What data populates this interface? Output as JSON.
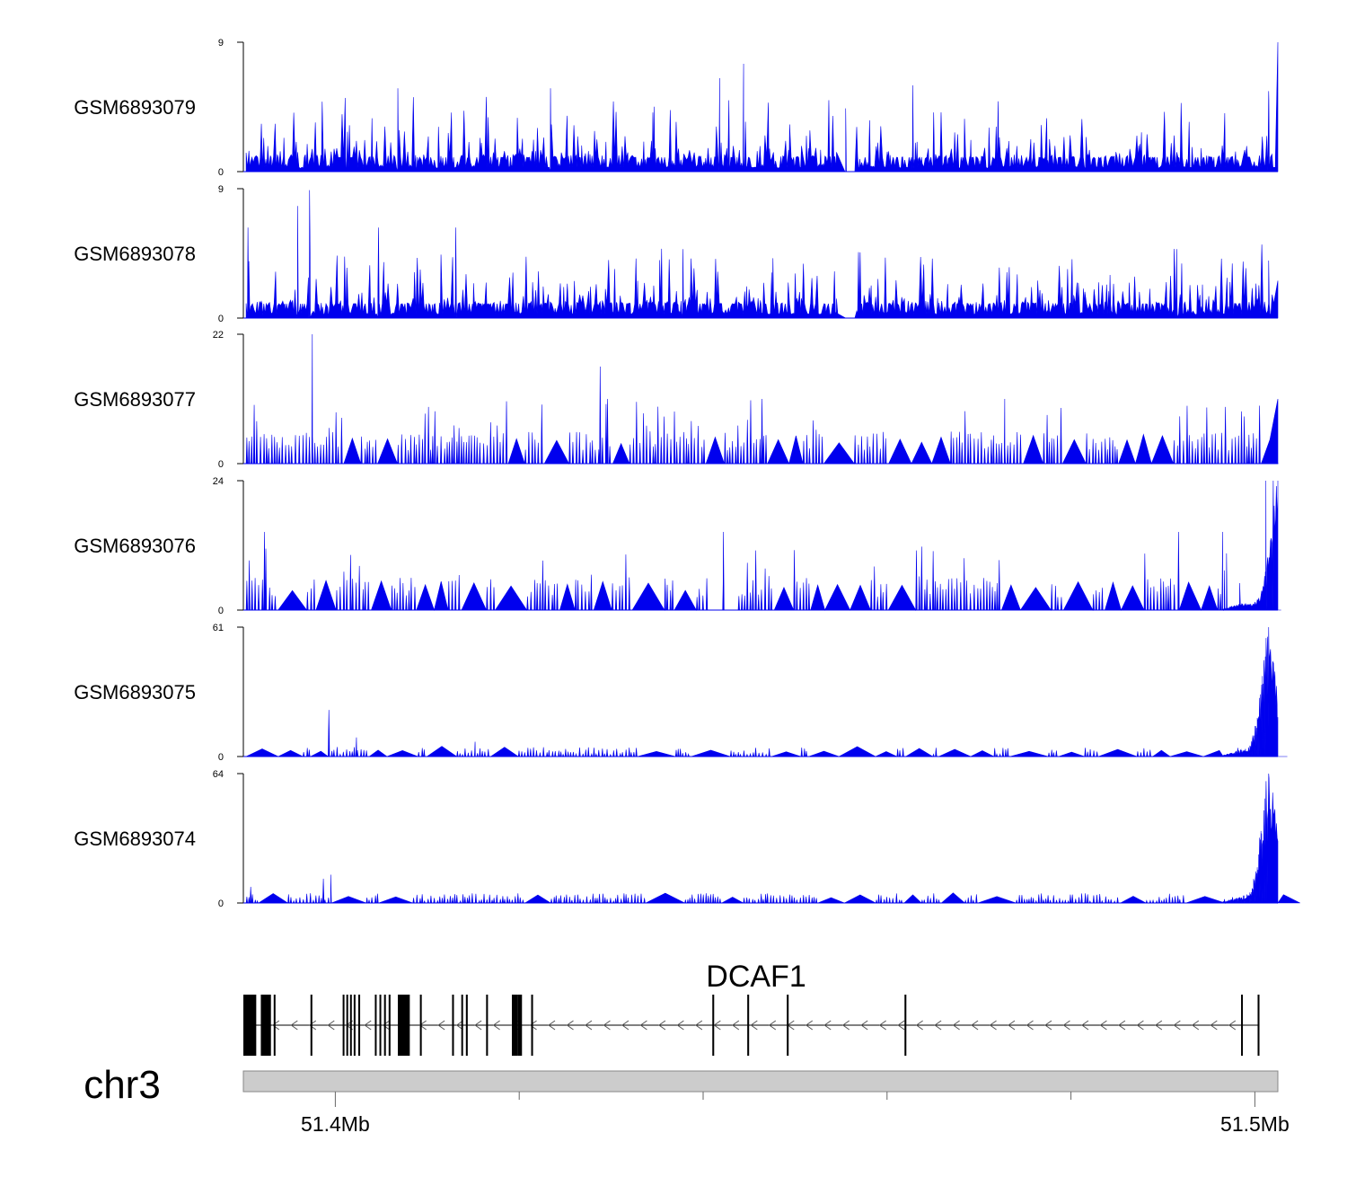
{
  "chart_data": {
    "type": "area",
    "title": "",
    "chromosome": "chr3",
    "gene": "DCAF1",
    "strand": "-",
    "xlim_mb": [
      51.39,
      51.5025
    ],
    "x_ticks_mb": [
      51.4,
      51.41,
      51.42,
      51.43,
      51.44,
      51.45,
      51.46,
      51.47,
      51.48,
      51.49,
      51.5
    ],
    "x_tick_labels": [
      {
        "mb": 51.4,
        "label": "51.4Mb"
      },
      {
        "mb": 51.5,
        "label": "51.5Mb"
      }
    ],
    "colors": {
      "signal": "#0000ee",
      "axis": "#000000",
      "ideogram": "#cccccc"
    },
    "tracks": [
      {
        "name": "GSM6893079",
        "ymin": 0,
        "ymax": 9,
        "ylim_labels": [
          "0",
          "9"
        ],
        "profile": "noisy",
        "gap_mb": [
          51.4545,
          51.4565
        ],
        "end_peak_mb": 51.5025,
        "end_peak_value": 9,
        "tall_spikes": [
          [
            51.4418,
            6.5
          ],
          [
            51.4444,
            7.5
          ],
          [
            51.4555,
            4.4
          ],
          [
            51.4628,
            6.0
          ],
          [
            51.5015,
            5.6
          ],
          [
            51.4234,
            5.8
          ],
          [
            51.4068,
            5.8
          ]
        ]
      },
      {
        "name": "GSM6893078",
        "ymin": 0,
        "ymax": 9,
        "ylim_labels": [
          "0",
          "9"
        ],
        "profile": "noisy",
        "gap_mb": [
          51.4545,
          51.4565
        ],
        "end_peak_mb": 51.5015,
        "end_peak_value": 4.0,
        "tall_spikes": [
          [
            51.3972,
            8.9
          ],
          [
            51.3959,
            7.8
          ],
          [
            51.3905,
            6.3
          ],
          [
            51.4047,
            6.3
          ],
          [
            51.4131,
            6.3
          ],
          [
            51.4378,
            4.8
          ],
          [
            51.4915,
            4.8
          ]
        ]
      },
      {
        "name": "GSM6893077",
        "ymin": 0,
        "ymax": 22,
        "ylim_labels": [
          "0",
          "22"
        ],
        "profile": "sparse",
        "end_peak_mb": 51.5025,
        "end_peak_value": 11,
        "tall_spikes": [
          [
            51.3975,
            22
          ],
          [
            51.4288,
            16.5
          ],
          [
            51.4296,
            11
          ],
          [
            51.4464,
            11
          ],
          [
            51.4728,
            11
          ]
        ]
      },
      {
        "name": "GSM6893076",
        "ymin": 0,
        "ymax": 24,
        "ylim_labels": [
          "0",
          "24"
        ],
        "profile": "sparse",
        "end_peak_mb": 51.5025,
        "end_peak_value": 24,
        "tall_spikes": [
          [
            51.3923,
            14.5
          ],
          [
            51.4422,
            14.5
          ],
          [
            51.4917,
            14.5
          ],
          [
            51.4965,
            14.5
          ],
          [
            51.5012,
            24
          ],
          [
            51.502,
            24
          ]
        ]
      },
      {
        "name": "GSM6893075",
        "ymin": 0,
        "ymax": 61,
        "ylim_labels": [
          "0",
          "61"
        ],
        "profile": "low",
        "end_peak_mb": 51.5015,
        "end_peak_value": 61,
        "tall_spikes": [
          [
            51.3993,
            22
          ],
          [
            51.4023,
            9
          ],
          [
            51.4152,
            7
          ]
        ]
      },
      {
        "name": "GSM6893074",
        "ymin": 0,
        "ymax": 64,
        "ylim_labels": [
          "0",
          "64"
        ],
        "profile": "low",
        "end_peak_mb": 51.5015,
        "end_peak_value": 64,
        "tall_spikes": [
          [
            51.3995,
            14
          ],
          [
            51.3987,
            12
          ],
          [
            51.3908,
            8
          ]
        ]
      }
    ],
    "gene_model": {
      "start_mb": 51.39,
      "end_mb": 51.5005,
      "exons_mb": [
        [
          51.39,
          51.3914
        ],
        [
          51.3919,
          51.393
        ],
        [
          51.3933,
          51.3934
        ],
        [
          51.3973,
          51.3975
        ],
        [
          51.4008,
          51.4009
        ],
        [
          51.4012,
          51.4013
        ],
        [
          51.4016,
          51.4017
        ],
        [
          51.402,
          51.4021
        ],
        [
          51.4025,
          51.4027
        ],
        [
          51.4043,
          51.4044
        ],
        [
          51.4048,
          51.4049
        ],
        [
          51.4053,
          51.4055
        ],
        [
          51.4058,
          51.406
        ],
        [
          51.4068,
          51.4081
        ],
        [
          51.4092,
          51.4094
        ],
        [
          51.4127,
          51.4129
        ],
        [
          51.4137,
          51.4138
        ],
        [
          51.4142,
          51.4144
        ],
        [
          51.4164,
          51.4166
        ],
        [
          51.4192,
          51.4198
        ],
        [
          51.4198,
          51.4203
        ],
        [
          51.4213,
          51.4215
        ],
        [
          51.441,
          51.4412
        ],
        [
          51.4448,
          51.445
        ],
        [
          51.4491,
          51.4493
        ],
        [
          51.4619,
          51.4621
        ],
        [
          51.4985,
          51.4986
        ],
        [
          51.5003,
          51.5005
        ]
      ]
    }
  }
}
